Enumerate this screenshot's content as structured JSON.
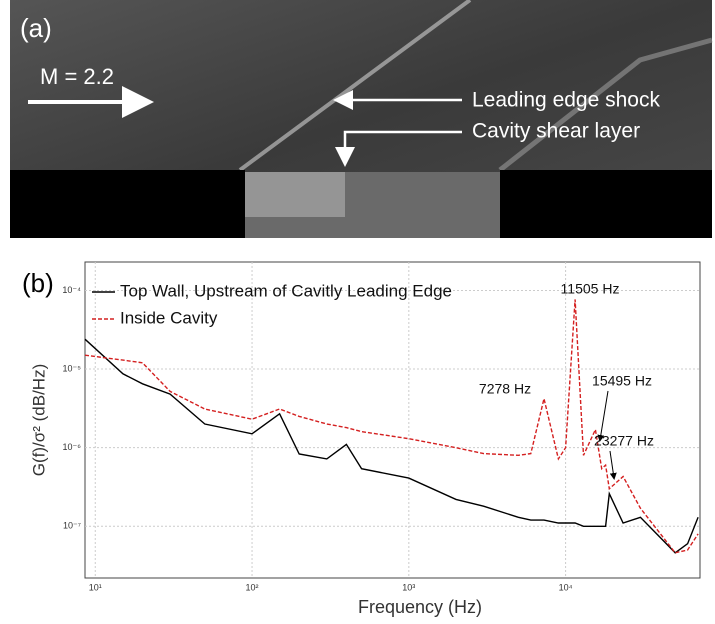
{
  "panel_a": {
    "label": "(a)",
    "mach": "M = 2.2",
    "shock": "Leading edge shock",
    "shear": "Cavity shear layer"
  },
  "chart_data": {
    "type": "line",
    "panel_label": "(b)",
    "x_label": "Frequency (Hz)",
    "y_label": "G(f)/σ² (dB/Hz)",
    "x": [
      8.6,
      15,
      20,
      30,
      50,
      100,
      150,
      200,
      300,
      400,
      500,
      1000,
      2000,
      3000,
      5000,
      6000,
      7278,
      9000,
      10000,
      11505,
      13000,
      15495,
      17000,
      18000,
      19000,
      23277,
      30000,
      50000,
      60000,
      70000
    ],
    "series": [
      {
        "name": "Top Wall, Upstream of Cavitly Leading Edge",
        "color": "#000000",
        "dash": false,
        "values": [
          2.4e-05,
          8.7e-06,
          6.5e-06,
          4.8e-06,
          2e-06,
          1.5e-06,
          2.7e-06,
          8.3e-07,
          7.2e-07,
          1.1e-06,
          5.4e-07,
          4.1e-07,
          2.2e-07,
          1.8e-07,
          1.3e-07,
          1.2e-07,
          1.2e-07,
          1.1e-07,
          1.1e-07,
          1.1e-07,
          1e-07,
          1e-07,
          1e-07,
          1e-07,
          2.6e-07,
          1.1e-07,
          1.3e-07,
          4.6e-08,
          6e-08,
          1.3e-07
        ]
      },
      {
        "name": "Inside Cavity",
        "color": "#d42020",
        "dash": true,
        "values": [
          1.5e-05,
          1.3e-05,
          1.2e-05,
          5.2e-06,
          3.1e-06,
          2.3e-06,
          3.1e-06,
          2.5e-06,
          2e-06,
          1.8e-06,
          1.6e-06,
          1.3e-06,
          1e-06,
          8.4e-07,
          8e-07,
          8.4e-07,
          4.2e-06,
          7.2e-07,
          1e-06,
          7.7e-05,
          8e-07,
          1.7e-06,
          5.4e-07,
          6e-07,
          3e-07,
          4.3e-07,
          1.7e-07,
          4.6e-08,
          5e-08,
          8e-08
        ]
      }
    ],
    "annotations": [
      "11505 Hz",
      "7278 Hz",
      "15495 Hz",
      "23277 Hz"
    ],
    "xlim": [
      8.6,
      72000
    ],
    "ylim": [
      2.2e-08,
      0.00023
    ],
    "log_x": true,
    "log_y": true,
    "grid": true,
    "xticks": [
      {
        "value": 10,
        "label": "10¹"
      },
      {
        "value": 100,
        "label": "10²"
      },
      {
        "value": 1000,
        "label": "10³"
      },
      {
        "value": 10000,
        "label": "10⁴"
      }
    ],
    "yticks": [
      {
        "value": 1e-07,
        "label": "10⁻⁷"
      },
      {
        "value": 1e-06,
        "label": "10⁻⁶"
      },
      {
        "value": 1e-05,
        "label": "10⁻⁵"
      },
      {
        "value": 0.0001,
        "label": "10⁻⁴"
      }
    ],
    "legend": "upper left"
  }
}
